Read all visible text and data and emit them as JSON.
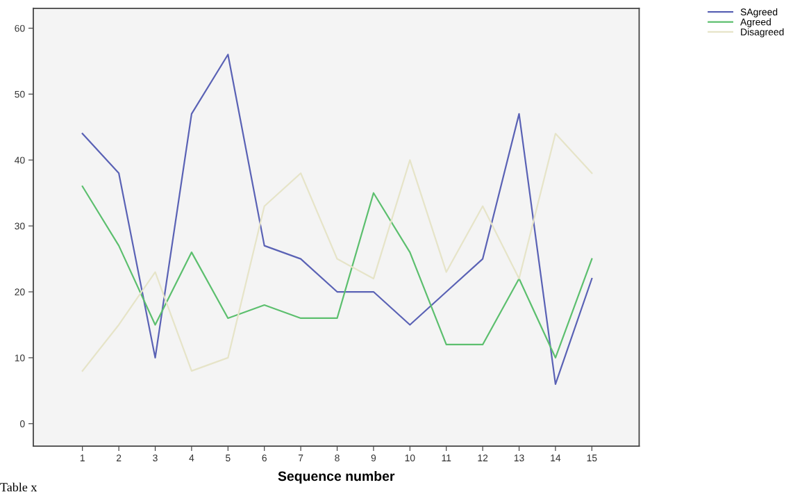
{
  "chart_data": {
    "type": "line",
    "xlabel": "Sequence number",
    "x": [
      1,
      2,
      3,
      4,
      5,
      6,
      7,
      8,
      9,
      10,
      11,
      12,
      13,
      14,
      15
    ],
    "series": [
      {
        "name": "SAgreed",
        "color": "#5a62b5",
        "values": [
          44,
          38,
          10,
          47,
          56,
          27,
          25,
          20,
          20,
          15,
          20,
          25,
          47,
          6,
          22
        ]
      },
      {
        "name": "Agreed",
        "color": "#5cbf6e",
        "values": [
          36,
          27,
          15,
          26,
          16,
          18,
          16,
          16,
          35,
          26,
          12,
          12,
          22,
          10,
          25
        ]
      },
      {
        "name": "Disagreed",
        "color": "#e6e4c8",
        "values": [
          8,
          15,
          23,
          8,
          10,
          33,
          38,
          25,
          22,
          40,
          23,
          33,
          22,
          44,
          38
        ]
      }
    ],
    "xlim": [
      -0.35,
      16.3
    ],
    "xticks": [
      1,
      2,
      3,
      4,
      5,
      6,
      7,
      8,
      9,
      10,
      11,
      12,
      13,
      14,
      15
    ],
    "ylim": [
      -3.4,
      63
    ],
    "yticks": [
      0,
      10,
      20,
      30,
      40,
      50,
      60
    ],
    "grid": false,
    "legend": "top right",
    "annotations": [
      "Table x"
    ]
  }
}
